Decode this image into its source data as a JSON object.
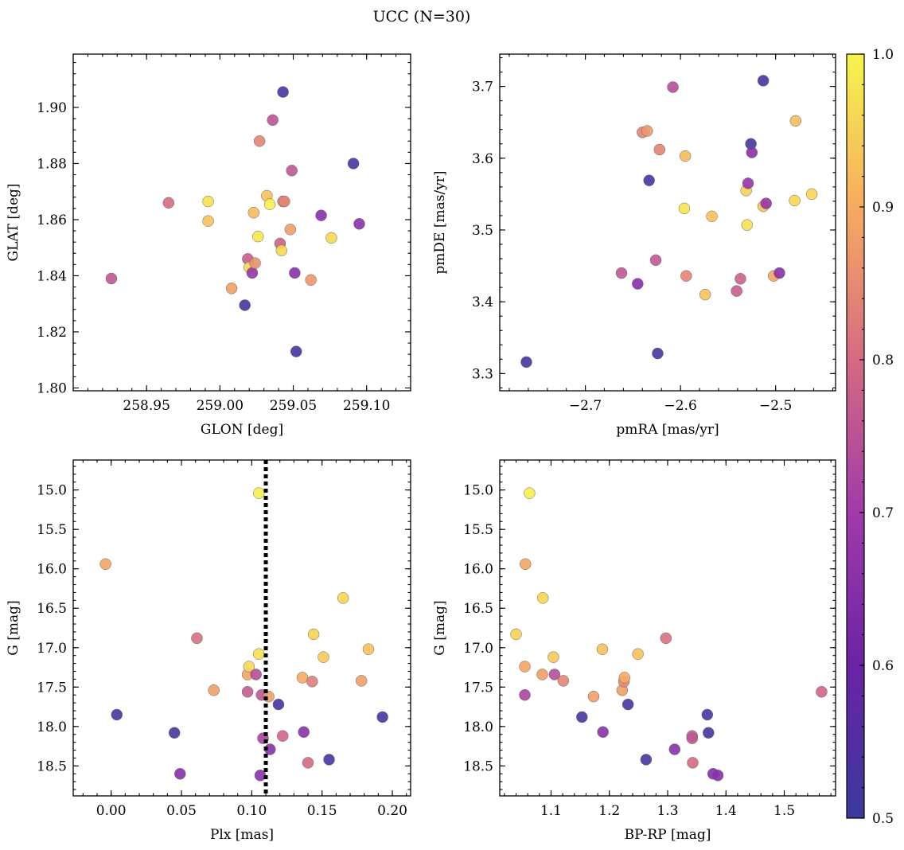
{
  "figure": {
    "title": "UCC (N=30)"
  },
  "colorbar": {
    "range": [
      0.5,
      1.0
    ],
    "ticks": [
      0.5,
      0.6,
      0.7,
      0.8,
      0.9,
      1.0
    ],
    "tick_labels": [
      "0.5",
      "0.6",
      "0.7",
      "0.8",
      "0.9",
      "1.0"
    ],
    "colormap": "plasma"
  },
  "chart_data": [
    {
      "type": "scatter",
      "xlabel": "GLON [deg]",
      "ylabel": "GLAT [deg]",
      "xlim": [
        258.9,
        259.13
      ],
      "ylim": [
        1.799,
        1.919
      ],
      "xticks": [
        258.95,
        259.0,
        259.05,
        259.1
      ],
      "xtick_labels": [
        "258.95",
        "259.00",
        "259.05",
        "259.10"
      ],
      "yticks": [
        1.8,
        1.82,
        1.84,
        1.86,
        1.88,
        1.9
      ],
      "ytick_labels": [
        "1.80",
        "1.82",
        "1.84",
        "1.86",
        "1.88",
        "1.90"
      ],
      "x": [
        258.926,
        258.965,
        258.992,
        258.992,
        259.008,
        259.017,
        259.019,
        259.02,
        259.022,
        259.023,
        259.024,
        259.026,
        259.027,
        259.032,
        259.034,
        259.036,
        259.041,
        259.042,
        259.043,
        259.043,
        259.044,
        259.048,
        259.049,
        259.051,
        259.052,
        259.062,
        259.069,
        259.076,
        259.091,
        259.095
      ],
      "y": [
        1.839,
        1.866,
        1.8665,
        1.8595,
        1.8355,
        1.8295,
        1.846,
        1.843,
        1.841,
        1.8625,
        1.8445,
        1.854,
        1.888,
        1.8685,
        1.8655,
        1.8955,
        1.8515,
        1.849,
        1.9055,
        1.8665,
        1.8665,
        1.8565,
        1.8775,
        1.841,
        1.813,
        1.8385,
        1.8615,
        1.8535,
        1.88,
        1.8585
      ],
      "c": [
        0.76,
        0.8,
        0.97,
        0.93,
        0.88,
        0.52,
        0.77,
        0.96,
        0.68,
        0.92,
        0.86,
        0.98,
        0.84,
        0.93,
        0.99,
        0.75,
        0.78,
        0.96,
        0.52,
        0.84,
        0.84,
        0.88,
        0.76,
        0.66,
        0.53,
        0.87,
        0.66,
        0.96,
        0.52,
        0.66
      ]
    },
    {
      "type": "scatter",
      "xlabel": "pmRA [mas/yr]",
      "ylabel": "pmDE [mas/yr]",
      "xlim": [
        -2.79,
        -2.437
      ],
      "ylim": [
        3.276,
        3.745
      ],
      "xticks": [
        -2.7,
        -2.6,
        -2.5
      ],
      "xtick_labels": [
        "−2.7",
        "−2.6",
        "−2.5"
      ],
      "yticks": [
        3.3,
        3.4,
        3.5,
        3.6,
        3.7
      ],
      "ytick_labels": [
        "3.3",
        "3.4",
        "3.5",
        "3.6",
        "3.7"
      ],
      "x": [
        -2.762,
        -2.662,
        -2.645,
        -2.64,
        -2.635,
        -2.633,
        -2.626,
        -2.624,
        -2.622,
        -2.608,
        -2.596,
        -2.595,
        -2.594,
        -2.574,
        -2.567,
        -2.541,
        -2.537,
        -2.531,
        -2.53,
        -2.529,
        -2.526,
        -2.525,
        -2.513,
        -2.513,
        -2.51,
        -2.502,
        -2.496,
        -2.48,
        -2.479,
        -2.462
      ],
      "y": [
        3.316,
        3.44,
        3.425,
        3.636,
        3.638,
        3.569,
        3.458,
        3.328,
        3.612,
        3.699,
        3.53,
        3.603,
        3.436,
        3.41,
        3.519,
        3.415,
        3.432,
        3.555,
        3.507,
        3.565,
        3.62,
        3.608,
        3.533,
        3.708,
        3.537,
        3.436,
        3.44,
        3.541,
        3.652,
        3.55
      ],
      "c": [
        0.52,
        0.76,
        0.65,
        0.84,
        0.87,
        0.52,
        0.76,
        0.52,
        0.84,
        0.74,
        0.98,
        0.92,
        0.84,
        0.93,
        0.93,
        0.77,
        0.78,
        0.95,
        0.97,
        0.68,
        0.52,
        0.66,
        0.93,
        0.52,
        0.68,
        0.89,
        0.66,
        0.96,
        0.92,
        0.96
      ]
    },
    {
      "type": "scatter",
      "xlabel": "Plx [mas]",
      "ylabel": "G [mag]",
      "xlim": [
        -0.027,
        0.213
      ],
      "ylim": [
        18.88,
        14.62
      ],
      "y_inverted": true,
      "vline_x": 0.11,
      "xticks": [
        0.0,
        0.05,
        0.1,
        0.15,
        0.2
      ],
      "xtick_labels": [
        "0.00",
        "0.05",
        "0.10",
        "0.15",
        "0.20"
      ],
      "yticks": [
        15.0,
        15.5,
        16.0,
        16.5,
        17.0,
        17.5,
        18.0,
        18.5
      ],
      "ytick_labels": [
        "15.0",
        "15.5",
        "16.0",
        "16.5",
        "17.0",
        "17.5",
        "18.0",
        "18.5"
      ],
      "x": [
        -0.004,
        0.004,
        0.045,
        0.049,
        0.061,
        0.073,
        0.097,
        0.097,
        0.098,
        0.103,
        0.105,
        0.105,
        0.106,
        0.107,
        0.108,
        0.112,
        0.113,
        0.119,
        0.122,
        0.136,
        0.137,
        0.14,
        0.143,
        0.144,
        0.151,
        0.155,
        0.165,
        0.178,
        0.183,
        0.193
      ],
      "y": [
        15.94,
        17.85,
        18.08,
        18.6,
        16.88,
        17.54,
        17.56,
        17.34,
        17.24,
        17.34,
        15.04,
        17.08,
        18.62,
        17.6,
        18.15,
        17.62,
        18.29,
        17.72,
        18.12,
        17.38,
        18.07,
        18.46,
        17.43,
        16.83,
        17.12,
        18.42,
        16.37,
        17.42,
        17.02,
        17.88
      ],
      "c": [
        0.89,
        0.52,
        0.52,
        0.65,
        0.81,
        0.88,
        0.77,
        0.89,
        0.96,
        0.74,
        0.99,
        0.97,
        0.66,
        0.76,
        0.72,
        0.88,
        0.66,
        0.52,
        0.79,
        0.9,
        0.66,
        0.8,
        0.83,
        0.95,
        0.94,
        0.52,
        0.96,
        0.88,
        0.93,
        0.52
      ]
    },
    {
      "type": "scatter",
      "xlabel": "BP-RP [mag]",
      "ylabel": "G [mag]",
      "xlim": [
        1.012,
        1.588
      ],
      "ylim": [
        18.88,
        14.62
      ],
      "y_inverted": true,
      "xticks": [
        1.1,
        1.2,
        1.3,
        1.4,
        1.5
      ],
      "xtick_labels": [
        "1.1",
        "1.2",
        "1.3",
        "1.4",
        "1.5"
      ],
      "yticks": [
        15.0,
        15.5,
        16.0,
        16.5,
        17.0,
        17.5,
        18.0,
        18.5
      ],
      "ytick_labels": [
        "15.0",
        "15.5",
        "16.0",
        "16.5",
        "17.0",
        "17.5",
        "18.0",
        "18.5"
      ],
      "x": [
        1.04,
        1.055,
        1.055,
        1.056,
        1.063,
        1.085,
        1.086,
        1.104,
        1.106,
        1.121,
        1.153,
        1.173,
        1.188,
        1.189,
        1.222,
        1.225,
        1.226,
        1.232,
        1.249,
        1.263,
        1.297,
        1.312,
        1.342,
        1.342,
        1.343,
        1.368,
        1.37,
        1.378,
        1.386,
        1.564
      ],
      "y": [
        16.83,
        17.24,
        17.6,
        15.94,
        15.04,
        17.34,
        16.37,
        17.12,
        17.34,
        17.42,
        17.88,
        17.62,
        17.02,
        18.07,
        17.54,
        17.43,
        17.38,
        17.72,
        17.08,
        18.42,
        16.88,
        18.29,
        18.12,
        18.15,
        18.46,
        17.85,
        18.08,
        18.6,
        18.62,
        17.56
      ],
      "c": [
        0.95,
        0.89,
        0.72,
        0.89,
        0.99,
        0.88,
        0.96,
        0.94,
        0.74,
        0.84,
        0.52,
        0.88,
        0.93,
        0.66,
        0.88,
        0.84,
        0.9,
        0.52,
        0.93,
        0.52,
        0.81,
        0.66,
        0.78,
        0.76,
        0.8,
        0.52,
        0.52,
        0.65,
        0.66,
        0.79
      ]
    }
  ]
}
